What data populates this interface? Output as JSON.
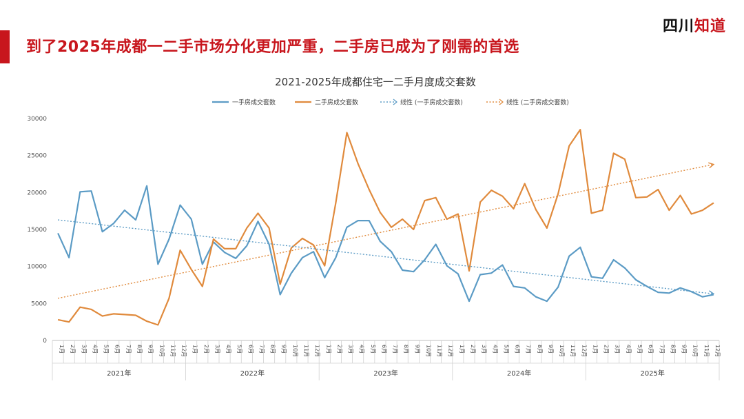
{
  "page": {
    "headline": "到了2025年成都一二手市场分化更加严重，二手房已成为了刚需的首选",
    "logo_part1": "四川",
    "logo_part2": "知道",
    "accent_color": "#c8161d"
  },
  "chart_data": {
    "type": "line",
    "title": "2021-2025年成都住宅一二手月度成交套数",
    "years": [
      "2021年",
      "2022年",
      "2023年",
      "2024年",
      "2025年"
    ],
    "months": [
      "1月",
      "2月",
      "3月",
      "4月",
      "5月",
      "6月",
      "7月",
      "8月",
      "9月",
      "10月",
      "11月",
      "12月"
    ],
    "ylim": [
      0,
      30000
    ],
    "yticks": [
      0,
      5000,
      10000,
      15000,
      20000,
      25000,
      30000
    ],
    "series": [
      {
        "name": "一手房成交套数",
        "color": "#5b9bc5",
        "values": [
          14500,
          11200,
          20100,
          20200,
          14700,
          15800,
          17600,
          16300,
          20900,
          10300,
          13700,
          18300,
          16400,
          10300,
          13300,
          11900,
          11100,
          12800,
          16100,
          13000,
          6200,
          9100,
          11200,
          12000,
          8500,
          11200,
          15300,
          16200,
          16200,
          13400,
          12000,
          9500,
          9300,
          10900,
          13000,
          10100,
          9000,
          5300,
          8900,
          9100,
          10200,
          7300,
          7100,
          5900,
          5300,
          7200,
          11400,
          12600,
          8600,
          8400,
          10900,
          9800,
          8200,
          7300,
          6500,
          6400,
          7100,
          6600,
          5900,
          6200
        ]
      },
      {
        "name": "二手房成交套数",
        "color": "#e08a3c",
        "values": [
          2800,
          2500,
          4500,
          4200,
          3300,
          3600,
          3500,
          3400,
          2600,
          2100,
          5700,
          12200,
          9600,
          7300,
          13700,
          12400,
          12400,
          15200,
          17200,
          15200,
          7600,
          12500,
          13800,
          12900,
          10100,
          18600,
          28100,
          23900,
          20400,
          17300,
          15300,
          16400,
          15000,
          18900,
          19300,
          16400,
          17100,
          9400,
          18700,
          20300,
          19500,
          17800,
          21200,
          17700,
          15200,
          19800,
          26300,
          28500,
          17200,
          17600,
          25300,
          24500,
          19300,
          19400,
          20400,
          17600,
          19600,
          17100,
          17600,
          18600
        ]
      }
    ],
    "trendlines": [
      {
        "name": "线性 (一手房成交套数)",
        "color": "#5b9bc5",
        "start": 16300,
        "end": 6300
      },
      {
        "name": "线性 (二手房成交套数)",
        "color": "#e08a3c",
        "start": 5700,
        "end": 23800
      }
    ]
  }
}
